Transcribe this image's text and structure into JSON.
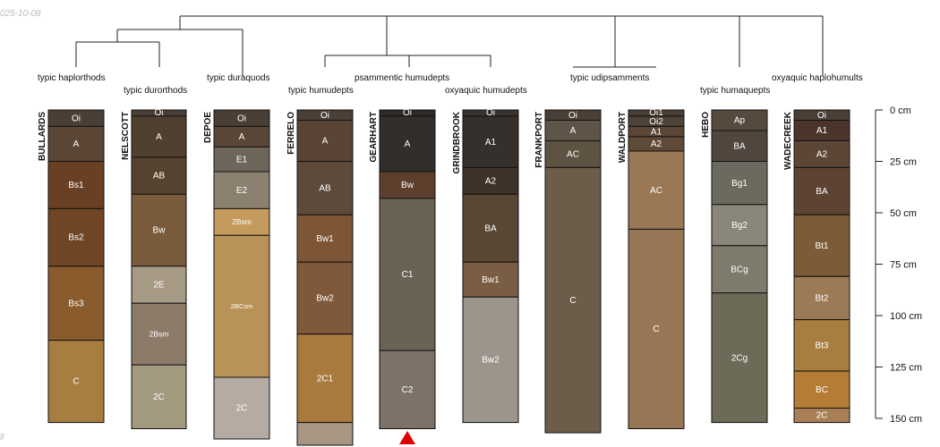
{
  "date_label": "025-10-08",
  "corner_mark": "ll",
  "taxa": {
    "typic_haplorthods": "typic haplorthods",
    "typic_durorthods": "typic durorthods",
    "typic_duraquods": "typic duraquods",
    "typic_humudepts": "typic humudepts",
    "psammentic_humudepts": "psammentic humudepts",
    "oxyaquic_humudepts": "oxyaquic humudepts",
    "typic_udipsamments": "typic udipsamments",
    "typic_humaquepts": "typic humaquepts",
    "oxyaquic_haplohumults": "oxyaquic haplohumults"
  },
  "depth_axis": {
    "unit": "cm",
    "ticks": [
      {
        "depth": 0,
        "label": "0 cm"
      },
      {
        "depth": 25,
        "label": "25 cm"
      },
      {
        "depth": 50,
        "label": "50 cm"
      },
      {
        "depth": 75,
        "label": "75 cm"
      },
      {
        "depth": 100,
        "label": "100 cm"
      },
      {
        "depth": 125,
        "label": "125 cm"
      },
      {
        "depth": 150,
        "label": "150 cm"
      }
    ]
  },
  "profiles": [
    {
      "name": "BULLARDS",
      "horizons": [
        {
          "name": "Oi",
          "top": 0,
          "bottom": 8,
          "color": "#4a3f36"
        },
        {
          "name": "A",
          "top": 8,
          "bottom": 25,
          "color": "#5b4535"
        },
        {
          "name": "Bs1",
          "top": 25,
          "bottom": 48,
          "color": "#6a4025"
        },
        {
          "name": "Bs2",
          "top": 48,
          "bottom": 76,
          "color": "#6f4526"
        },
        {
          "name": "Bs3",
          "top": 76,
          "bottom": 112,
          "color": "#8a5b2c"
        },
        {
          "name": "C",
          "top": 112,
          "bottom": 152,
          "color": "#a77d40"
        }
      ]
    },
    {
      "name": "NELSCOTT",
      "horizons": [
        {
          "name": "Oi",
          "top": 0,
          "bottom": 3,
          "color": "#4a3f36"
        },
        {
          "name": "A",
          "top": 3,
          "bottom": 23,
          "color": "#50402f"
        },
        {
          "name": "AB",
          "top": 23,
          "bottom": 41,
          "color": "#55432f"
        },
        {
          "name": "Bw",
          "top": 41,
          "bottom": 76,
          "color": "#7a5c3c"
        },
        {
          "name": "2E",
          "top": 76,
          "bottom": 94,
          "color": "#a79a84"
        },
        {
          "name": "2Bsm",
          "top": 94,
          "bottom": 124,
          "color": "#8d7b6a"
        },
        {
          "name": "2C",
          "top": 124,
          "bottom": 155,
          "color": "#a3997f"
        }
      ]
    },
    {
      "name": "DEPOE",
      "horizons": [
        {
          "name": "Oi",
          "top": 0,
          "bottom": 8,
          "color": "#4a3f36"
        },
        {
          "name": "A",
          "top": 8,
          "bottom": 18,
          "color": "#5a4636"
        },
        {
          "name": "E1",
          "top": 18,
          "bottom": 30,
          "color": "#6f665b"
        },
        {
          "name": "E2",
          "top": 30,
          "bottom": 48,
          "color": "#8c8170"
        },
        {
          "name": "2Bsm",
          "top": 48,
          "bottom": 61,
          "color": "#c49a5d"
        },
        {
          "name": "2BCsm",
          "top": 61,
          "bottom": 130,
          "color": "#b99257"
        },
        {
          "name": "2C",
          "top": 130,
          "bottom": 160,
          "color": "#b6aba2"
        }
      ]
    },
    {
      "name": "FERRELO",
      "horizons": [
        {
          "name": "Oi",
          "top": 0,
          "bottom": 5,
          "color": "#4a3f36"
        },
        {
          "name": "A",
          "top": 5,
          "bottom": 25,
          "color": "#594436"
        },
        {
          "name": "AB",
          "top": 25,
          "bottom": 51,
          "color": "#5e4a3b"
        },
        {
          "name": "Bw1",
          "top": 51,
          "bottom": 74,
          "color": "#7e5636"
        },
        {
          "name": "Bw2",
          "top": 74,
          "bottom": 109,
          "color": "#80593a"
        },
        {
          "name": "2C1",
          "top": 109,
          "bottom": 152,
          "color": "#a87a3d"
        },
        {
          "name": "",
          "top": 152,
          "bottom": 170,
          "color": "#a89582"
        }
      ]
    },
    {
      "name": "GEARHART",
      "truncated": true,
      "horizons": [
        {
          "name": "Oi",
          "top": 0,
          "bottom": 3,
          "color": "#2e2a27"
        },
        {
          "name": "A",
          "top": 3,
          "bottom": 30,
          "color": "#332e2b"
        },
        {
          "name": "Bw",
          "top": 30,
          "bottom": 43,
          "color": "#5e3e2c"
        },
        {
          "name": "C1",
          "top": 43,
          "bottom": 117,
          "color": "#6b6256"
        },
        {
          "name": "C2",
          "top": 117,
          "bottom": 155,
          "color": "#7d7268"
        }
      ]
    },
    {
      "name": "GRINDBROOK",
      "horizons": [
        {
          "name": "Oi",
          "top": 0,
          "bottom": 3,
          "color": "#3a3430"
        },
        {
          "name": "A1",
          "top": 3,
          "bottom": 28,
          "color": "#36302c"
        },
        {
          "name": "A2",
          "top": 28,
          "bottom": 41,
          "color": "#3e3128"
        },
        {
          "name": "BA",
          "top": 41,
          "bottom": 74,
          "color": "#5a4733"
        },
        {
          "name": "Bw1",
          "top": 74,
          "bottom": 91,
          "color": "#7a5e43"
        },
        {
          "name": "Bw2",
          "top": 91,
          "bottom": 152,
          "color": "#9c958b"
        }
      ]
    },
    {
      "name": "FRANKPORT",
      "horizons": [
        {
          "name": "Oi",
          "top": 0,
          "bottom": 5,
          "color": "#4a3f36"
        },
        {
          "name": "A",
          "top": 5,
          "bottom": 15,
          "color": "#5f5448"
        },
        {
          "name": "AC",
          "top": 15,
          "bottom": 28,
          "color": "#5e5242"
        },
        {
          "name": "C",
          "top": 28,
          "bottom": 157,
          "color": "#6b5d49"
        }
      ]
    },
    {
      "name": "WALDPORT",
      "horizons": [
        {
          "name": "Oi1",
          "top": 0,
          "bottom": 3,
          "color": "#4a3f36"
        },
        {
          "name": "Oi2",
          "top": 3,
          "bottom": 8,
          "color": "#4f4236"
        },
        {
          "name": "A1",
          "top": 8,
          "bottom": 13,
          "color": "#5a4536"
        },
        {
          "name": "A2",
          "top": 13,
          "bottom": 20,
          "color": "#5f4a38"
        },
        {
          "name": "AC",
          "top": 20,
          "bottom": 58,
          "color": "#9a7855"
        },
        {
          "name": "C",
          "top": 58,
          "bottom": 155,
          "color": "#977656"
        }
      ]
    },
    {
      "name": "HEBO",
      "horizons": [
        {
          "name": "Ap",
          "top": 0,
          "bottom": 10,
          "color": "#564a3f"
        },
        {
          "name": "BA",
          "top": 10,
          "bottom": 25,
          "color": "#50463e"
        },
        {
          "name": "Bg1",
          "top": 25,
          "bottom": 46,
          "color": "#6c6a5f"
        },
        {
          "name": "Bg2",
          "top": 46,
          "bottom": 66,
          "color": "#8a8679"
        },
        {
          "name": "BCg",
          "top": 66,
          "bottom": 89,
          "color": "#7e7a6c"
        },
        {
          "name": "2Cg",
          "top": 89,
          "bottom": 152,
          "color": "#6e6a58"
        }
      ]
    },
    {
      "name": "WADECREEK",
      "horizons": [
        {
          "name": "Oi",
          "top": 0,
          "bottom": 5,
          "color": "#4a3f36"
        },
        {
          "name": "A1",
          "top": 5,
          "bottom": 15,
          "color": "#4b342a"
        },
        {
          "name": "A2",
          "top": 15,
          "bottom": 28,
          "color": "#5c4737"
        },
        {
          "name": "BA",
          "top": 28,
          "bottom": 51,
          "color": "#5d4432"
        },
        {
          "name": "Bt1",
          "top": 51,
          "bottom": 81,
          "color": "#7c5c37"
        },
        {
          "name": "Bt2",
          "top": 81,
          "bottom": 102,
          "color": "#9c7a55"
        },
        {
          "name": "Bt3",
          "top": 102,
          "bottom": 127,
          "color": "#a77e3f"
        },
        {
          "name": "BC",
          "top": 127,
          "bottom": 145,
          "color": "#b47c35"
        },
        {
          "name": "2C",
          "top": 145,
          "bottom": 152,
          "color": "#a97f57"
        }
      ]
    }
  ]
}
